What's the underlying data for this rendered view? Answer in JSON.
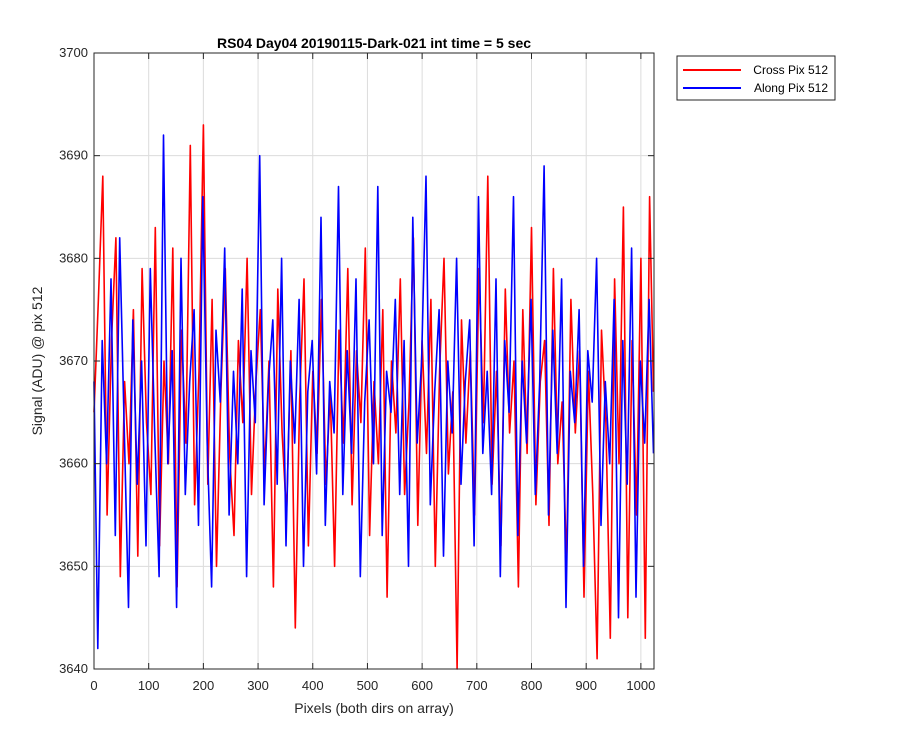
{
  "chart_data": {
    "type": "line",
    "title": "RS04 Day04 20190115-Dark-021 int time = 5 sec",
    "xlabel": "Pixels (both dirs on array)",
    "ylabel": "Signal (ADU) @ pix 512",
    "xlim": [
      0,
      1024
    ],
    "ylim": [
      3640,
      3700
    ],
    "xticks": [
      0,
      100,
      200,
      300,
      400,
      500,
      600,
      700,
      800,
      900,
      1000
    ],
    "yticks": [
      3640,
      3650,
      3660,
      3670,
      3680,
      3690,
      3700
    ],
    "grid": true,
    "legend_position": "outside-top-right",
    "series": [
      {
        "name": "Cross Pix 512",
        "color": "#ff0000",
        "x": [
          0,
          8,
          16,
          24,
          32,
          40,
          48,
          56,
          64,
          72,
          80,
          88,
          96,
          104,
          112,
          120,
          128,
          136,
          144,
          152,
          160,
          168,
          176,
          184,
          192,
          200,
          208,
          216,
          224,
          232,
          240,
          248,
          256,
          264,
          272,
          280,
          288,
          296,
          304,
          312,
          320,
          328,
          336,
          344,
          352,
          360,
          368,
          376,
          384,
          392,
          400,
          408,
          416,
          424,
          432,
          440,
          448,
          456,
          464,
          472,
          480,
          488,
          496,
          504,
          512,
          520,
          528,
          536,
          544,
          552,
          560,
          568,
          576,
          584,
          592,
          600,
          608,
          616,
          624,
          632,
          640,
          648,
          656,
          664,
          672,
          680,
          688,
          696,
          704,
          712,
          720,
          728,
          736,
          744,
          752,
          760,
          768,
          776,
          784,
          792,
          800,
          808,
          816,
          824,
          832,
          840,
          848,
          856,
          864,
          872,
          880,
          888,
          896,
          904,
          912,
          920,
          928,
          936,
          944,
          952,
          960,
          968,
          976,
          984,
          992,
          1000,
          1008,
          1016,
          1023
        ],
        "y": [
          3665,
          3676,
          3688,
          3655,
          3672,
          3682,
          3649,
          3668,
          3660,
          3675,
          3651,
          3679,
          3664,
          3657,
          3683,
          3652,
          3670,
          3660,
          3681,
          3648,
          3673,
          3662,
          3691,
          3656,
          3669,
          3693,
          3658,
          3676,
          3650,
          3667,
          3679,
          3661,
          3653,
          3672,
          3664,
          3680,
          3657,
          3668,
          3675,
          3659,
          3670,
          3648,
          3677,
          3663,
          3655,
          3671,
          3644,
          3666,
          3678,
          3652,
          3669,
          3661,
          3676,
          3658,
          3667,
          3650,
          3673,
          3662,
          3679,
          3656,
          3671,
          3664,
          3681,
          3653,
          3668,
          3660,
          3675,
          3647,
          3670,
          3663,
          3678,
          3657,
          3666,
          3682,
          3654,
          3672,
          3661,
          3676,
          3650,
          3669,
          3680,
          3659,
          3667,
          3640,
          3674,
          3662,
          3671,
          3655,
          3679,
          3664,
          3688,
          3658,
          3669,
          3652,
          3677,
          3663,
          3670,
          3648,
          3675,
          3661,
          3683,
          3656,
          3668,
          3672,
          3654,
          3679,
          3660,
          3666,
          3650,
          3676,
          3663,
          3671,
          3647,
          3669,
          3657,
          3641,
          3673,
          3664,
          3643,
          3678,
          3660,
          3685,
          3645,
          3672,
          3655,
          3680,
          3643,
          3686,
          3667
        ]
      },
      {
        "name": "Along Pix 512",
        "color": "#0000ff",
        "x": [
          0,
          7,
          15,
          23,
          31,
          39,
          47,
          55,
          63,
          71,
          79,
          87,
          95,
          103,
          111,
          119,
          127,
          135,
          143,
          151,
          159,
          167,
          175,
          183,
          191,
          199,
          207,
          215,
          223,
          231,
          239,
          247,
          255,
          263,
          271,
          279,
          287,
          295,
          303,
          311,
          319,
          327,
          335,
          343,
          351,
          359,
          367,
          375,
          383,
          391,
          399,
          407,
          415,
          423,
          431,
          439,
          447,
          455,
          463,
          471,
          479,
          487,
          495,
          503,
          511,
          519,
          527,
          535,
          543,
          551,
          559,
          567,
          575,
          583,
          591,
          599,
          607,
          615,
          623,
          631,
          639,
          647,
          655,
          663,
          671,
          679,
          687,
          695,
          703,
          711,
          719,
          727,
          735,
          743,
          751,
          759,
          767,
          775,
          783,
          791,
          799,
          807,
          815,
          823,
          831,
          839,
          847,
          855,
          863,
          871,
          879,
          887,
          895,
          903,
          911,
          919,
          927,
          935,
          943,
          951,
          959,
          967,
          975,
          983,
          991,
          999,
          1007,
          1015,
          1023
        ],
        "y": [
          3668,
          3642,
          3672,
          3660,
          3678,
          3653,
          3682,
          3664,
          3646,
          3674,
          3658,
          3670,
          3652,
          3679,
          3663,
          3649,
          3692,
          3660,
          3671,
          3646,
          3680,
          3657,
          3668,
          3675,
          3654,
          3686,
          3662,
          3648,
          3673,
          3666,
          3681,
          3655,
          3669,
          3660,
          3677,
          3649,
          3671,
          3664,
          3690,
          3656,
          3668,
          3674,
          3658,
          3680,
          3652,
          3670,
          3662,
          3676,
          3650,
          3667,
          3672,
          3659,
          3684,
          3654,
          3668,
          3663,
          3687,
          3657,
          3671,
          3661,
          3678,
          3649,
          3666,
          3674,
          3660,
          3687,
          3653,
          3669,
          3665,
          3676,
          3657,
          3672,
          3650,
          3684,
          3662,
          3670,
          3688,
          3656,
          3667,
          3675,
          3651,
          3670,
          3663,
          3680,
          3658,
          3668,
          3674,
          3652,
          3686,
          3661,
          3669,
          3657,
          3678,
          3649,
          3672,
          3665,
          3686,
          3653,
          3670,
          3662,
          3676,
          3657,
          3668,
          3689,
          3655,
          3673,
          3661,
          3678,
          3646,
          3669,
          3664,
          3675,
          3650,
          3671,
          3666,
          3680,
          3654,
          3668,
          3660,
          3676,
          3645,
          3672,
          3658,
          3681,
          3647,
          3670,
          3662,
          3676,
          3661
        ]
      }
    ]
  }
}
